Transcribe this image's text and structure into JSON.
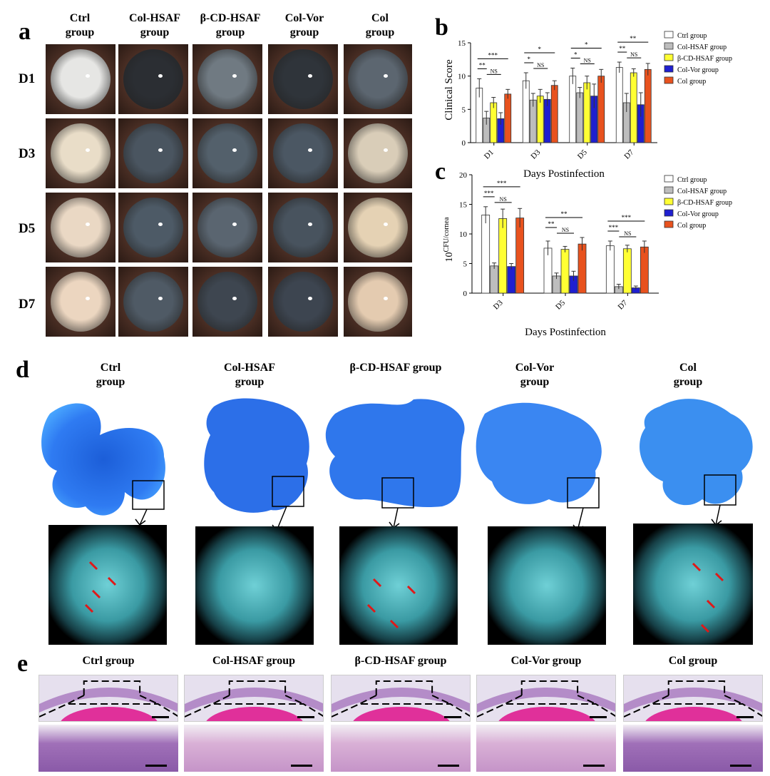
{
  "panel_a": {
    "letter": "a",
    "columns": [
      "Ctrl\ngroup",
      "Col-HSAF\ngroup",
      "β-CD-HSAF\ngroup",
      "Col-Vor\ngroup",
      "Col\ngroup"
    ],
    "rows": [
      "D1",
      "D3",
      "D5",
      "D7"
    ]
  },
  "panel_b": {
    "letter": "b"
  },
  "panel_c": {
    "letter": "c"
  },
  "panel_d": {
    "letter": "d",
    "columns": [
      "Ctrl\ngroup",
      "Col-HSAF\ngroup",
      "β-CD-HSAF group",
      "Col-Vor\ngroup",
      "Col\ngroup"
    ]
  },
  "panel_e": {
    "letter": "e",
    "columns": [
      "Ctrl group",
      "Col-HSAF group",
      "β-CD-HSAF group",
      "Col-Vor group",
      "Col group"
    ]
  },
  "colors": {
    "Ctrl group": "#ffffff",
    "Col-HSAF group": "#bdbdbd",
    "β-CD-HSAF group": "#ffff33",
    "Col-Vor group": "#1f1fd0",
    "Col group": "#e8521e"
  },
  "chart_data": [
    {
      "type": "bar",
      "panel": "b",
      "categories": [
        "D1",
        "D3",
        "D5",
        "D7"
      ],
      "xlabel": "Days Postinfection",
      "ylabel": "Clinical Score",
      "ylim": [
        0,
        15
      ],
      "yticks": [
        "0",
        "5",
        "10",
        "15"
      ],
      "legend_position": "right",
      "series": [
        {
          "name": "Ctrl group",
          "values": [
            8.2,
            9.3,
            10.0,
            11.3
          ],
          "errors": [
            1.4,
            1.2,
            1.2,
            0.8
          ]
        },
        {
          "name": "Col-HSAF group",
          "values": [
            3.7,
            6.4,
            7.5,
            6.0
          ],
          "errors": [
            1.0,
            1.0,
            0.8,
            1.4
          ]
        },
        {
          "name": "β-CD-HSAF group",
          "values": [
            6.0,
            7.0,
            9.0,
            10.5
          ],
          "errors": [
            0.8,
            1.0,
            1.0,
            0.6
          ]
        },
        {
          "name": "Col-Vor group",
          "values": [
            3.6,
            6.5,
            7.0,
            5.7
          ],
          "errors": [
            0.9,
            1.0,
            1.8,
            1.8
          ]
        },
        {
          "name": "Col group",
          "values": [
            7.3,
            8.6,
            10.0,
            11.0
          ],
          "errors": [
            0.7,
            0.7,
            1.0,
            0.9
          ]
        }
      ],
      "annotations": [
        {
          "label": "**",
          "at": "D1"
        },
        {
          "label": "***",
          "at": "D1"
        },
        {
          "label": "NS",
          "at": "D1"
        },
        {
          "label": "*",
          "at": "D3"
        },
        {
          "label": "*",
          "at": "D3"
        },
        {
          "label": "NS",
          "at": "D3"
        },
        {
          "label": "*",
          "at": "D5"
        },
        {
          "label": "*",
          "at": "D5"
        },
        {
          "label": "NS",
          "at": "D5"
        },
        {
          "label": "**",
          "at": "D7"
        },
        {
          "label": "**",
          "at": "D7"
        },
        {
          "label": "NS",
          "at": "D7"
        }
      ]
    },
    {
      "type": "bar",
      "panel": "c",
      "categories": [
        "D3",
        "D5",
        "D7"
      ],
      "xlabel": "Days Postinfection",
      "ylabel": "10^CFU/cornea",
      "ylabel_base": "10",
      "ylabel_exp": "CFU/cornea",
      "ylim": [
        0,
        20
      ],
      "yticks": [
        "0",
        "5",
        "10",
        "15",
        "20"
      ],
      "legend_position": "right",
      "series": [
        {
          "name": "Ctrl group",
          "values": [
            13.2,
            7.6,
            8.0
          ],
          "errors": [
            1.4,
            1.2,
            0.8
          ]
        },
        {
          "name": "Col-HSAF group",
          "values": [
            4.6,
            2.9,
            1.1
          ],
          "errors": [
            0.5,
            0.5,
            0.4
          ]
        },
        {
          "name": "β-CD-HSAF group",
          "values": [
            12.6,
            7.4,
            7.5
          ],
          "errors": [
            1.6,
            0.5,
            0.6
          ]
        },
        {
          "name": "Col-Vor group",
          "values": [
            4.5,
            2.9,
            0.9
          ],
          "errors": [
            0.5,
            0.8,
            0.3
          ]
        },
        {
          "name": "Col group",
          "values": [
            12.7,
            8.3,
            7.8
          ],
          "errors": [
            1.6,
            1.1,
            1.0
          ]
        }
      ],
      "annotations": [
        {
          "label": "***",
          "at": "D3"
        },
        {
          "label": "***",
          "at": "D3"
        },
        {
          "label": "NS",
          "at": "D3"
        },
        {
          "label": "**",
          "at": "D5"
        },
        {
          "label": "**",
          "at": "D5"
        },
        {
          "label": "NS",
          "at": "D5"
        },
        {
          "label": "***",
          "at": "D7"
        },
        {
          "label": "***",
          "at": "D7"
        },
        {
          "label": "NS",
          "at": "D7"
        }
      ]
    }
  ]
}
